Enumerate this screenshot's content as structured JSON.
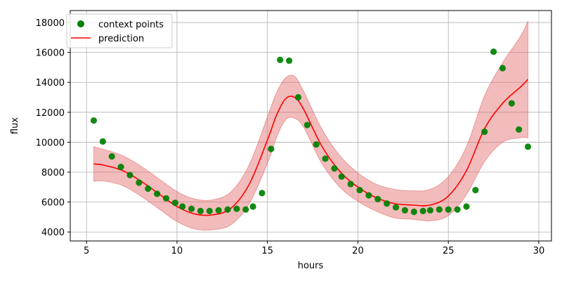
{
  "chart_data": {
    "type": "scatter",
    "xlabel": "hours",
    "ylabel": "flux",
    "xlim": [
      4.1,
      30.7
    ],
    "ylim": [
      3400,
      18800
    ],
    "xticks": [
      5,
      10,
      15,
      20,
      25,
      30
    ],
    "yticks": [
      4000,
      6000,
      8000,
      10000,
      12000,
      14000,
      16000,
      18000
    ],
    "grid": true,
    "legend_position": "top-left",
    "series": [
      {
        "name": "context points",
        "kind": "scatter",
        "color": "#008000",
        "x": [
          5.4,
          5.9,
          6.4,
          6.9,
          7.4,
          7.9,
          8.4,
          8.9,
          9.4,
          9.9,
          10.3,
          10.8,
          11.3,
          11.8,
          12.3,
          12.8,
          13.3,
          13.8,
          14.2,
          14.7,
          15.2,
          15.7,
          16.2,
          16.7,
          17.2,
          17.7,
          18.2,
          18.7,
          19.1,
          19.6,
          20.1,
          20.6,
          21.1,
          21.6,
          22.1,
          22.6,
          23.1,
          23.6,
          24.0,
          24.5,
          25.0,
          25.5,
          26.0,
          26.5,
          27.0,
          27.5,
          28.0,
          28.5,
          28.9,
          29.4
        ],
        "y": [
          11450,
          10050,
          9050,
          8350,
          7800,
          7300,
          6900,
          6550,
          6250,
          5950,
          5700,
          5550,
          5400,
          5400,
          5450,
          5500,
          5550,
          5500,
          5700,
          6600,
          9550,
          15500,
          15450,
          13000,
          11150,
          9850,
          8900,
          8250,
          7700,
          7200,
          6800,
          6450,
          6200,
          5900,
          5650,
          5450,
          5350,
          5400,
          5450,
          5500,
          5500,
          5500,
          5700,
          6800,
          10700,
          16050,
          14950,
          12600,
          10850,
          9700
        ]
      },
      {
        "name": "prediction",
        "kind": "line",
        "color": "#ff0000",
        "band_color": "#e06060",
        "x": [
          5.4,
          6.0,
          7.0,
          8.0,
          9.0,
          10.0,
          11.0,
          12.0,
          13.0,
          14.0,
          15.0,
          15.5,
          16.0,
          16.5,
          17.0,
          18.0,
          19.0,
          20.0,
          21.0,
          22.0,
          23.0,
          24.0,
          25.0,
          26.0,
          27.0,
          28.0,
          29.0,
          29.4
        ],
        "y": [
          8550,
          8450,
          8100,
          7400,
          6550,
          5700,
          5200,
          5150,
          5600,
          7200,
          10150,
          11800,
          12900,
          13000,
          12200,
          9750,
          8050,
          7000,
          6300,
          5900,
          5800,
          5800,
          6400,
          8100,
          10900,
          12600,
          13700,
          14200
        ],
        "lower": [
          7400,
          7400,
          7100,
          6400,
          5550,
          4700,
          4200,
          4150,
          4500,
          5900,
          8600,
          10300,
          11500,
          11600,
          11000,
          8600,
          7000,
          6050,
          5400,
          4950,
          4850,
          4750,
          5100,
          6500,
          8700,
          10000,
          10300,
          10300
        ],
        "upper": [
          9700,
          9500,
          9100,
          8400,
          7550,
          6700,
          6200,
          6150,
          6700,
          8500,
          11700,
          13300,
          14300,
          14400,
          13400,
          10900,
          9100,
          7950,
          7200,
          6850,
          6750,
          6850,
          7700,
          9700,
          13100,
          15300,
          17100,
          18100
        ]
      }
    ]
  }
}
